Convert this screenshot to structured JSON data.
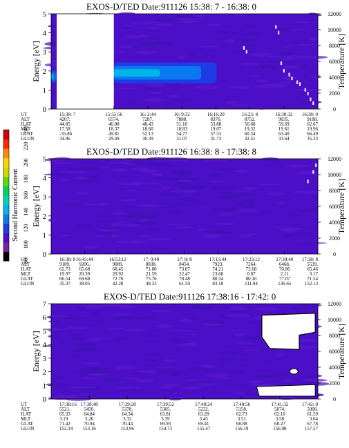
{
  "colorbar": {
    "label": "Second Harmonic Current",
    "ticks": [
      "80",
      "100",
      "120",
      "140",
      "160",
      "180",
      "200",
      "220",
      "240"
    ],
    "colors": [
      "#000000",
      "#7a1fa8",
      "#4b0fc8",
      "#1e3ce6",
      "#0a78f0",
      "#00b4e6",
      "#00d2b4",
      "#00d25a",
      "#5adc00",
      "#c8dc00",
      "#ffd200",
      "#ff8c00",
      "#ff2800",
      "#d20000"
    ]
  },
  "chart_data": [
    {
      "type": "heatmap",
      "title": "EXOS-D/TED   Date:911126  15:38: 7 - 16:38: 0",
      "ylabel": "Energy [eV]",
      "y2label": "Temperature [K]",
      "ylim": [
        0,
        5
      ],
      "yticks": [
        "0",
        "1",
        "2",
        "3",
        "4",
        "5"
      ],
      "y2lim": [
        0,
        12000
      ],
      "y2ticks": [
        "0",
        "2000",
        "4000",
        "6000",
        "8000",
        "10000",
        "12000"
      ],
      "time_fraction_start": 0.0,
      "data_gap": [
        0.0,
        0.235
      ],
      "ephemeris": {
        "labels": [
          "UT",
          "ALT",
          "ILAT",
          "MLT",
          "GLAT",
          "GLON"
        ],
        "columns": [
          [
            "15:38: 7",
            "4207.",
            "44.85",
            "17.58",
            "-35.86",
            "34.96"
          ],
          [
            "15:55:56",
            "6574.",
            "46.08",
            "18.37",
            "49.81",
            "29.49"
          ],
          [
            "16: 2:44",
            "7287.",
            "48.43",
            "18.60",
            "52.13",
            "30.39"
          ],
          [
            "16: 9:32",
            "7888.",
            "51.10",
            "18.83",
            "54.77",
            "31.07"
          ],
          [
            "16:16:20",
            "8376.",
            "53.88",
            "19.07",
            "57.53",
            "31.73"
          ],
          [
            "16:23: 8",
            "8752.",
            "56.68",
            "19.32",
            "60.34",
            "32.51"
          ],
          [
            "16:30:32",
            "9035.",
            "59.69",
            "19.61",
            "63.40",
            "33.64"
          ],
          [
            "16:38: 0",
            "9188.",
            "62.67",
            "19.96",
            "66.49",
            "35.33"
          ]
        ]
      },
      "features": [
        {
          "kind": "band",
          "y_center": 1.9,
          "y_half": 0.55,
          "x_from": 0.235,
          "x_to": 0.62,
          "peak": 2
        },
        {
          "kind": "band",
          "y_center": 1.7,
          "y_half": 0.35,
          "x_from": 0.0,
          "x_to": 0.02,
          "peak": 2
        }
      ]
    },
    {
      "type": "heatmap",
      "title": "EXOS-D/TED   Date:911126  16:38: 8 - 17:38: 8",
      "ylabel": "Energy [eV]",
      "y2label": "Temperature [K]",
      "ylim": [
        0,
        5
      ],
      "yticks": [
        "0",
        "1",
        "2",
        "3",
        "4",
        "5"
      ],
      "y2lim": [
        0,
        12000
      ],
      "y2ticks": [
        "0",
        "2000",
        "4000",
        "6000",
        "8000",
        "10000",
        "12000"
      ],
      "ephemeris": {
        "labels": [
          "UT",
          "ALT",
          "ILAT",
          "MLT",
          "GLAT",
          "GLON"
        ],
        "columns": [
          [
            "16:38: 8",
            "9189.",
            "62.73",
            "19.97",
            "66.54",
            "35.37"
          ],
          [
            "16:45:44",
            "9206.",
            "65.68",
            "20.39",
            "69.68",
            "38.05"
          ],
          [
            "16:53:12",
            "9089.",
            "68.45",
            "20.92",
            "72.76",
            "42.28"
          ],
          [
            "17: 0:40",
            "8838.",
            "71.00",
            "21.59",
            "75.76",
            "49.33"
          ],
          [
            "17: 8: 8",
            "8454.",
            "73.07",
            "22.47",
            "78.48",
            "61.59"
          ],
          [
            "17:15:44",
            "7923.",
            "74.21",
            "23.60",
            "80.34",
            "83.10"
          ],
          [
            "17:23:12",
            "7264.",
            "73.68",
            "0.87",
            "80.10",
            "111.94"
          ],
          [
            "17:30:40",
            "6468.",
            "70.86",
            "2.11",
            "77.07",
            "136.65"
          ],
          [
            "17:38: 8",
            "5539.",
            "65.46",
            "3.17",
            "71.54",
            "152.13"
          ]
        ]
      },
      "features": []
    },
    {
      "type": "heatmap",
      "title": "EXOS-D/TED   Date:911126  17:38:16 - 17:42: 0",
      "ylabel": "Energy [eV]",
      "y2label": "Temperature [K]",
      "ylim": [
        0,
        7
      ],
      "yticks": [
        "0",
        "1",
        "2",
        "3",
        "4",
        "5",
        "6",
        "7"
      ],
      "y2lim": [
        0,
        12000
      ],
      "y2ticks": [
        "0",
        "2000",
        "4000",
        "6000",
        "8000",
        "10000",
        "12000"
      ],
      "ephemeris": {
        "labels": [
          "UT",
          "ALT",
          "ILAT",
          "MLT",
          "GLAT",
          "GLON"
        ],
        "columns": [
          [
            "17:38:16",
            "5521.",
            "65.33",
            "3.19",
            "71.42",
            "152.34"
          ],
          [
            "17:38:48",
            "5450.",
            "64.84",
            "3.26",
            "70.94",
            "153.16"
          ],
          [
            "17:39:20",
            "5378.",
            "64.34",
            "3.32",
            "70.44",
            "153.96"
          ],
          [
            "17:39:52",
            "5305.",
            "63.81",
            "3.39",
            "69.93",
            "154.73"
          ],
          [
            "17:40:24",
            "5232.",
            "63.28",
            "3.45",
            "69.41",
            "155.47"
          ],
          [
            "17:40:56",
            "5158.",
            "62.73",
            "3.51",
            "68.88",
            "156.19"
          ],
          [
            "17:41:32",
            "5074.",
            "62.10",
            "3.58",
            "68.27",
            "156.98"
          ],
          [
            "17:42: 0",
            "5008.",
            "61.59",
            "3.64",
            "67.78",
            "157.57"
          ]
        ]
      },
      "features": []
    }
  ]
}
